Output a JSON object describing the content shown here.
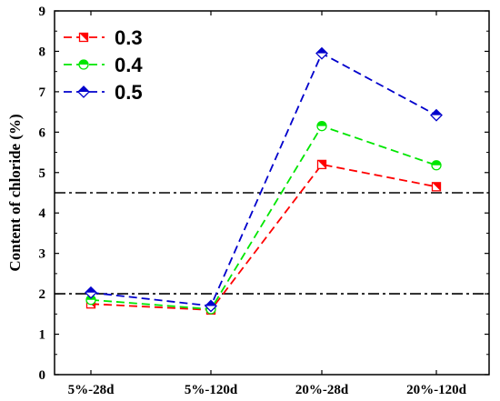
{
  "chart_data": {
    "type": "line",
    "categories": [
      "5%-28d",
      "5%-120d",
      "20%-28d",
      "20%-120d"
    ],
    "ylabel": "Content of  chloride (%)",
    "xlabel": "",
    "ylim": [
      0,
      9
    ],
    "yticks": [
      "0",
      "1",
      "2",
      "3",
      "4",
      "5",
      "6",
      "7",
      "8",
      "9"
    ],
    "reference_lines": [
      2.0,
      4.5
    ],
    "legend_position": "top-left",
    "grid": false,
    "series": [
      {
        "name": "0.3",
        "color": "#ff0000",
        "marker": "square",
        "values": [
          1.75,
          1.6,
          5.2,
          4.65
        ]
      },
      {
        "name": "0.4",
        "color": "#00e600",
        "marker": "circle",
        "values": [
          1.85,
          1.62,
          6.15,
          5.18
        ]
      },
      {
        "name": "0.5",
        "color": "#0000cc",
        "marker": "diamond",
        "values": [
          2.03,
          1.7,
          7.95,
          6.42
        ]
      }
    ]
  }
}
